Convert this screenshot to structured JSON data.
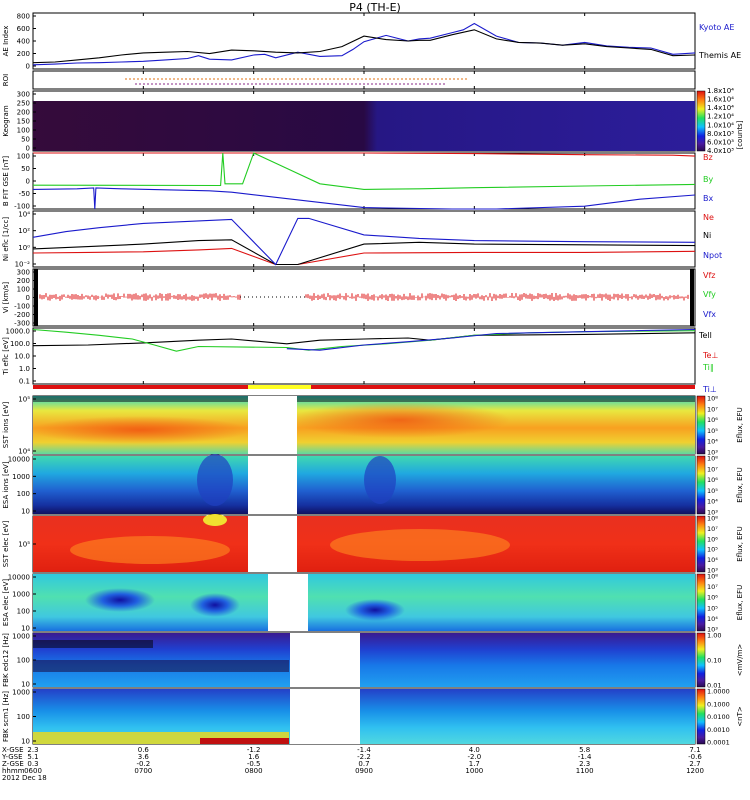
{
  "title": "P4 (TH-E)",
  "footer": {
    "row_labels": [
      "X-GSE",
      "Y-GSE",
      "Z-GSE",
      "hhmm",
      "2012 Dec 18"
    ],
    "columns": [
      {
        "x": [
          "2.3",
          "5.1",
          "0.3"
        ],
        "time": "0600"
      },
      {
        "x": [
          "0.6",
          "3.6",
          "-0.2"
        ],
        "time": "0700"
      },
      {
        "x": [
          "-1.2",
          "1.6",
          "-0.5"
        ],
        "time": "0800"
      },
      {
        "x": [
          "-1.4",
          "-2.2",
          "0.7"
        ],
        "time": "0900"
      },
      {
        "x": [
          "4.0",
          "-2.0",
          "1.7"
        ],
        "time": "1000"
      },
      {
        "x": [
          "5.8",
          "-1.4",
          "2.3"
        ],
        "time": "1100"
      },
      {
        "x": [
          "7.1",
          "-0.6",
          "2.7"
        ],
        "time": "1200"
      }
    ]
  },
  "colors": {
    "blue": "#1a1acc",
    "black": "#000000",
    "red": "#dd1111",
    "green": "#22cc22",
    "yellow": "#ffff22"
  },
  "chart_data": [
    {
      "type": "line",
      "ylabel": "AE Index",
      "yticks": [
        "0",
        "200",
        "400",
        "600",
        "800"
      ],
      "ylim": [
        0,
        800
      ],
      "legend": [
        "Kyoto AE",
        "Themis AE"
      ],
      "series": [
        {
          "name": "Kyoto AE",
          "color": "#1a1acc",
          "x": [
            0.0,
            0.2,
            0.4,
            0.6,
            0.8,
            1.0,
            1.2,
            1.4,
            1.5,
            1.6,
            1.8,
            2.0,
            2.1,
            2.2,
            2.4,
            2.6,
            2.8,
            2.9,
            3.0,
            3.2,
            3.4,
            3.5,
            3.6,
            3.8,
            3.9,
            4.0,
            4.2,
            4.4,
            4.6,
            4.8,
            5.0,
            5.2,
            5.4,
            5.6,
            5.8,
            6.0
          ],
          "y": [
            60,
            70,
            85,
            90,
            100,
            110,
            130,
            150,
            190,
            140,
            130,
            200,
            210,
            160,
            240,
            180,
            190,
            280,
            390,
            480,
            400,
            430,
            440,
            520,
            560,
            650,
            470,
            380,
            370,
            340,
            380,
            330,
            310,
            300,
            210,
            230
          ]
        },
        {
          "name": "Themis AE",
          "color": "#000000",
          "x": [
            0.0,
            0.2,
            0.4,
            0.6,
            0.8,
            1.0,
            1.2,
            1.4,
            1.6,
            1.8,
            2.0,
            2.2,
            2.4,
            2.6,
            2.8,
            3.0,
            3.2,
            3.4,
            3.5,
            3.6,
            3.8,
            4.0,
            4.2,
            4.4,
            4.6,
            4.8,
            5.0,
            5.2,
            5.4,
            5.6,
            5.8,
            6.0
          ],
          "y": [
            90,
            100,
            130,
            160,
            200,
            230,
            240,
            250,
            220,
            270,
            260,
            240,
            230,
            250,
            320,
            470,
            420,
            400,
            410,
            410,
            490,
            560,
            430,
            380,
            370,
            340,
            360,
            320,
            300,
            280,
            190,
            200
          ]
        }
      ]
    },
    {
      "type": "line",
      "ylabel": "ROI",
      "yticks": [],
      "note": "orbit-region markers"
    },
    {
      "type": "heatmap",
      "ylabel": "Keogram",
      "yticks": [
        "0",
        "50",
        "100",
        "150",
        "200",
        "250",
        "300"
      ],
      "ylim": [
        0,
        300
      ],
      "colorbar": {
        "label": "[counts]",
        "ticks": [
          "4.0x10³",
          "6.0x10³",
          "8.0x10³",
          "1.0x10⁴",
          "1.2x10⁴",
          "1.4x10⁴",
          "1.6x10⁴",
          "1.8x10⁴"
        ]
      }
    },
    {
      "type": "line",
      "ylabel": "B FIT GSE [nT]",
      "yticks": [
        "-100",
        "-50",
        "0",
        "50",
        "100"
      ],
      "ylim": [
        -100,
        100
      ],
      "legend": [
        "Bz",
        "By",
        "Bx"
      ],
      "series": [
        {
          "name": "Bz",
          "color": "#dd1111",
          "x": [
            0.0,
            2.0,
            2.2,
            3.0,
            4.0,
            5.0,
            5.8,
            6.0
          ],
          "y": [
            100,
            100,
            100,
            100,
            98,
            94,
            92,
            89
          ]
        },
        {
          "name": "By",
          "color": "#22cc22",
          "x": [
            0.0,
            1.7,
            1.72,
            1.74,
            1.9,
            2.0,
            2.3,
            2.6,
            3.0,
            3.5,
            4.0,
            5.0,
            6.0
          ],
          "y": [
            -15,
            -16,
            100,
            -10,
            -10,
            100,
            45,
            -10,
            -30,
            -28,
            -24,
            -18,
            -12
          ]
        },
        {
          "name": "Bx",
          "color": "#1a1acc",
          "x": [
            0.0,
            0.4,
            0.55,
            0.56,
            0.57,
            0.8,
            1.6,
            1.8,
            3.0,
            3.8,
            4.2,
            5.0,
            5.5,
            6.0
          ],
          "y": [
            -30,
            -28,
            -25,
            -100,
            -25,
            -28,
            -35,
            -40,
            -95,
            -100,
            -100,
            -90,
            -65,
            -50
          ]
        }
      ]
    },
    {
      "type": "line",
      "ylabel": "Ni eflc [1/cc]",
      "yticks": [
        "10⁻²",
        "10⁰",
        "10²",
        "10⁴"
      ],
      "yscale": "log",
      "legend": [
        "Ne",
        "Ni",
        "Npot"
      ],
      "series": [
        {
          "name": "Ne",
          "color": "#dd1111",
          "x": [
            0.0,
            0.5,
            1.0,
            1.5,
            1.8,
            2.2,
            2.4,
            3.0,
            4.0,
            5.0,
            6.0
          ],
          "y": [
            0.25,
            0.3,
            0.35,
            0.6,
            0.9,
            0.01,
            0.01,
            0.25,
            0.3,
            0.3,
            0.4
          ]
        },
        {
          "name": "Ni",
          "color": "#000000",
          "x": [
            0.0,
            0.5,
            1.0,
            1.5,
            1.8,
            2.2,
            2.4,
            3.0,
            3.5,
            4.0,
            5.0,
            6.0
          ],
          "y": [
            0.8,
            1.5,
            3,
            8,
            10,
            0.01,
            0.01,
            3,
            5,
            3,
            2.5,
            2
          ]
        },
        {
          "name": "Npot",
          "color": "#1a1acc",
          "x": [
            0.0,
            0.3,
            0.6,
            1.0,
            1.5,
            1.8,
            2.2,
            2.4,
            2.5,
            3.0,
            3.5,
            4.0,
            5.0,
            6.0
          ],
          "y": [
            20,
            100,
            300,
            1000,
            2000,
            3000,
            0.01,
            4000,
            4000,
            40,
            15,
            8,
            6,
            5
          ]
        }
      ]
    },
    {
      "type": "line",
      "ylabel": "Vi [km/s]",
      "yticks": [
        "-300",
        "-200",
        "-100",
        "0",
        "100",
        "200",
        "300"
      ],
      "ylim": [
        -350,
        350
      ],
      "legend": [
        "Vfz",
        "Vfy",
        "Vfx"
      ],
      "series": [
        {
          "name": "Vfz",
          "color": "#dd1111"
        },
        {
          "name": "Vfy",
          "color": "#22cc22"
        },
        {
          "name": "Vfx",
          "color": "#1a1acc"
        }
      ]
    },
    {
      "type": "line",
      "ylabel": "Ti eflc [eV]",
      "yticks": [
        "0.1",
        "1.0",
        "10.0",
        "100.0",
        "1000.0"
      ],
      "yscale": "log",
      "legend": [
        "Tell",
        "Te⊥",
        "Ti∥",
        "Ti⊥"
      ],
      "series": [
        {
          "name": "Tell",
          "color": "#000000",
          "x": [
            0.0,
            0.5,
            1.0,
            1.5,
            1.8,
            2.3,
            2.6,
            3.0,
            3.4,
            3.6,
            4.0,
            5.0,
            6.0
          ],
          "y": [
            70,
            80,
            120,
            200,
            250,
            100,
            200,
            250,
            300,
            200,
            500,
            600,
            800
          ]
        },
        {
          "name": "Ti∥",
          "color": "#22cc22",
          "x": [
            0.0,
            0.3,
            0.6,
            0.9,
            1.1,
            1.3,
            1.5,
            2.3,
            2.5,
            2.8,
            3.2,
            3.6,
            4.0,
            4.5,
            5.0,
            6.0
          ],
          "y": [
            1500,
            900,
            500,
            250,
            80,
            25,
            60,
            50,
            30,
            60,
            100,
            200,
            500,
            800,
            1000,
            1200
          ]
        },
        {
          "name": "Ti⊥",
          "color": "#1a1acc",
          "x": [
            2.3,
            2.6,
            3.0,
            3.4,
            3.8,
            4.2,
            5.0,
            6.0
          ],
          "y": [
            40,
            30,
            80,
            150,
            300,
            700,
            1000,
            1500
          ]
        }
      ]
    },
    {
      "type": "heatmap",
      "ylabel": "SST ions [eV]",
      "yticks": [
        "10⁴",
        "10⁵"
      ],
      "colorbar": {
        "label": "Eflux, EFU",
        "ticks": [
          "10³",
          "10⁴",
          "10⁵",
          "10⁶",
          "10⁷",
          "10⁸"
        ]
      }
    },
    {
      "type": "heatmap",
      "ylabel": "ESA ions [eV]",
      "yticks": [
        "10",
        "100",
        "1000",
        "10000"
      ],
      "colorbar": {
        "label": "Eflux, EFU",
        "ticks": [
          "10³",
          "10⁴",
          "10⁵",
          "10⁶",
          "10⁷",
          "10⁸"
        ]
      }
    },
    {
      "type": "heatmap",
      "ylabel": "SST elec [eV]",
      "yticks": [
        "10⁵"
      ],
      "colorbar": {
        "label": "Eflux, EFU",
        "ticks": [
          "10³",
          "10⁴",
          "10⁵",
          "10⁶",
          "10⁷",
          "10⁸"
        ]
      }
    },
    {
      "type": "heatmap",
      "ylabel": "ESA elec [eV]",
      "yticks": [
        "10",
        "100",
        "1000",
        "10000"
      ],
      "colorbar": {
        "label": "Eflux, EFU",
        "ticks": [
          "10³",
          "10⁴",
          "10⁵",
          "10⁶",
          "10⁷",
          "10⁸"
        ]
      }
    },
    {
      "type": "heatmap",
      "ylabel": "FBK edc12 [Hz]",
      "yticks": [
        "10",
        "100",
        "1000"
      ],
      "colorbar": {
        "label": "<mV/m>",
        "ticks": [
          "0.01",
          "0.10",
          "1.00"
        ]
      }
    },
    {
      "type": "heatmap",
      "ylabel": "FBK scm1 [Hz]",
      "yticks": [
        "10",
        "100",
        "1000"
      ],
      "colorbar": {
        "label": "<nT>",
        "ticks": [
          "0.0001",
          "0.0010",
          "0.0100",
          "0.1000",
          "1.0000"
        ]
      }
    }
  ]
}
